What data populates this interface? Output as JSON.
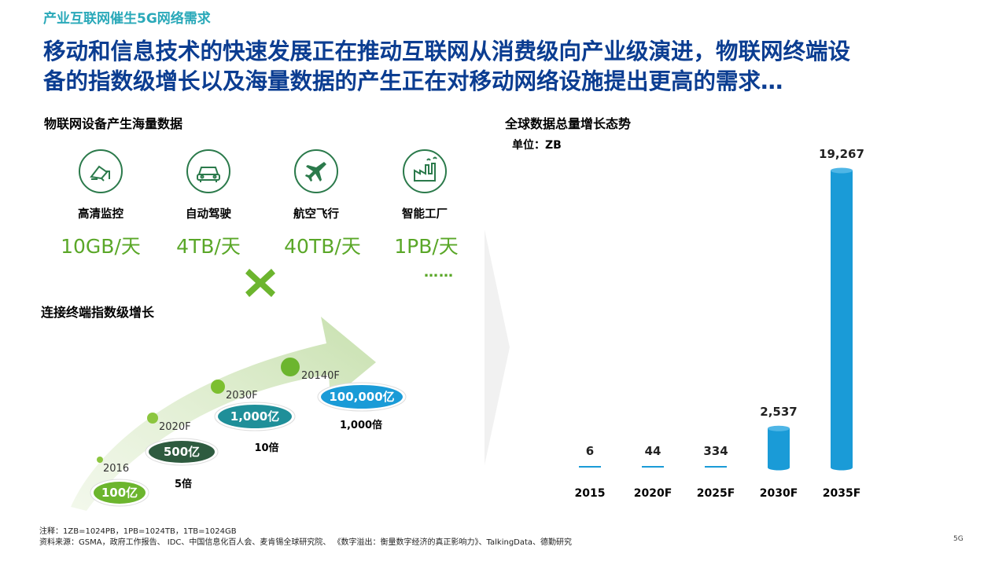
{
  "section_tag": "产业互联网催生5G网络需求",
  "headline_line1": "移动和信息技术的快速发展正在推动互联网从消费级向产业级演进，物联网终端设",
  "headline_line2": "备的指数级增长以及海量数据的产生正在对移动网络设施提出更高的需求…",
  "left_panel": {
    "title": "物联网设备产生海量数据",
    "devices": [
      {
        "icon": "camera-icon",
        "label": "高清监控",
        "value": "10GB/天"
      },
      {
        "icon": "car-icon",
        "label": "自动驾驶",
        "value": "4TB/天"
      },
      {
        "icon": "airplane-icon",
        "label": "航空飞行",
        "value": "40TB/天"
      },
      {
        "icon": "factory-icon",
        "label": "智能工厂",
        "value": "1PB/天"
      }
    ],
    "more": "……",
    "multiply_icon": "multiply-icon",
    "growth_title": "连接终端指数级增长",
    "growth": [
      {
        "year": "2016",
        "amount": "100亿",
        "multiple": "5倍"
      },
      {
        "year": "2020F",
        "amount": "500亿",
        "multiple": "10倍"
      },
      {
        "year": "2030F",
        "amount": "1,000亿",
        "multiple": "1,000倍"
      },
      {
        "year": "20140F",
        "amount": "100,000亿",
        "multiple": ""
      }
    ],
    "colors": {
      "green": "#5aa728",
      "dark_green": "#2e5b3f",
      "teal": "#1f8f99",
      "blue": "#1a9bd7"
    }
  },
  "right_panel": {
    "title": "全球数据总量增长态势",
    "unit": "单位：ZB"
  },
  "chart_data": {
    "type": "bar",
    "categories": [
      "2015",
      "2020F",
      "2025F",
      "2030F",
      "2035F"
    ],
    "values": [
      6,
      44,
      334,
      2537,
      19267
    ],
    "value_labels": [
      "6",
      "44",
      "334",
      "2,537",
      "19,267"
    ],
    "title": "全球数据总量增长态势",
    "ylabel": "单位：ZB",
    "xlabel": "",
    "grid": false,
    "bar_color": "#1a9bd7"
  },
  "footnotes": {
    "note": "注释：1ZB=1024PB，1PB=1024TB，1TB=1024GB",
    "source": "资料来源：GSMA，政府工作报告、 IDC、中国信息化百人会、麦肯锡全球研究院、 《数字溢出：衡量数字经济的真正影响力》、TalkingData、德勤研究"
  },
  "page_number": "5G"
}
